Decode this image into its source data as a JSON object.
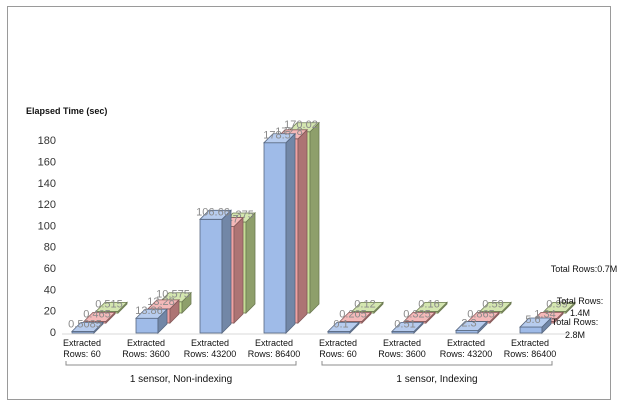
{
  "chart_data": {
    "type": "bar",
    "title": "",
    "ylabel": "Elapsed Time (sec)",
    "ylim": [
      0,
      180
    ],
    "yticks": [
      0,
      20,
      40,
      60,
      80,
      100,
      120,
      140,
      160,
      180
    ],
    "grid": false,
    "legend": "right",
    "categories": [
      {
        "line1": "Extracted",
        "line2": "Rows: 60"
      },
      {
        "line1": "Extracted",
        "line2": "Rows: 3600"
      },
      {
        "line1": "Extracted",
        "line2": "Rows: 43200"
      },
      {
        "line1": "Extracted",
        "line2": "Rows: 86400"
      },
      {
        "line1": "Extracted",
        "line2": "Rows: 60"
      },
      {
        "line1": "Extracted",
        "line2": "Rows: 3600"
      },
      {
        "line1": "Extracted",
        "line2": "Rows: 43200"
      },
      {
        "line1": "Extracted",
        "line2": "Rows: 86400"
      }
    ],
    "groups": [
      {
        "label": "1 sensor, Non-indexing",
        "from": 0,
        "to": 3
      },
      {
        "label": "1 sensor, Indexing",
        "from": 4,
        "to": 7
      }
    ],
    "series": [
      {
        "name": "Total Rows: 2.8M",
        "name_line1": "Total Rows:",
        "name_line2": "2.8M",
        "color": "#9fbbe8",
        "values": [
          0.5085,
          13.86,
          106.66,
          178.5,
          0.1,
          0.51,
          2.3,
          5.6
        ],
        "labels": [
          "0.5085",
          "13.86",
          "106.66",
          "178.5",
          "0.1",
          "0.51",
          "2.3",
          "5.6"
        ]
      },
      {
        "name": "Total Rows: 1.4M",
        "name_line1": "Total Rows:",
        "name_line2": "1.4M",
        "color": "#f0a1a1",
        "values": [
          0.465,
          13.28,
          90.47,
          172.8,
          0.205,
          0.325,
          0.865,
          1.34
        ],
        "labels": [
          "0.465",
          "13.28",
          "90.47",
          "172.8",
          "0.205",
          "0.325",
          "0.865",
          "1.34"
        ]
      },
      {
        "name": "Total Rows:0.7M",
        "name_line1": "Total Rows:0.7M",
        "name_line2": "",
        "color": "#c5dd95",
        "values": [
          0.515,
          10.575,
          85.375,
          170.02,
          0.12,
          0.16,
          0.59,
          0.99
        ],
        "labels": [
          "0.515",
          "10.575",
          "85.375",
          "170.02",
          "0.12",
          "0.16",
          "0.59",
          "0.99"
        ]
      }
    ]
  }
}
